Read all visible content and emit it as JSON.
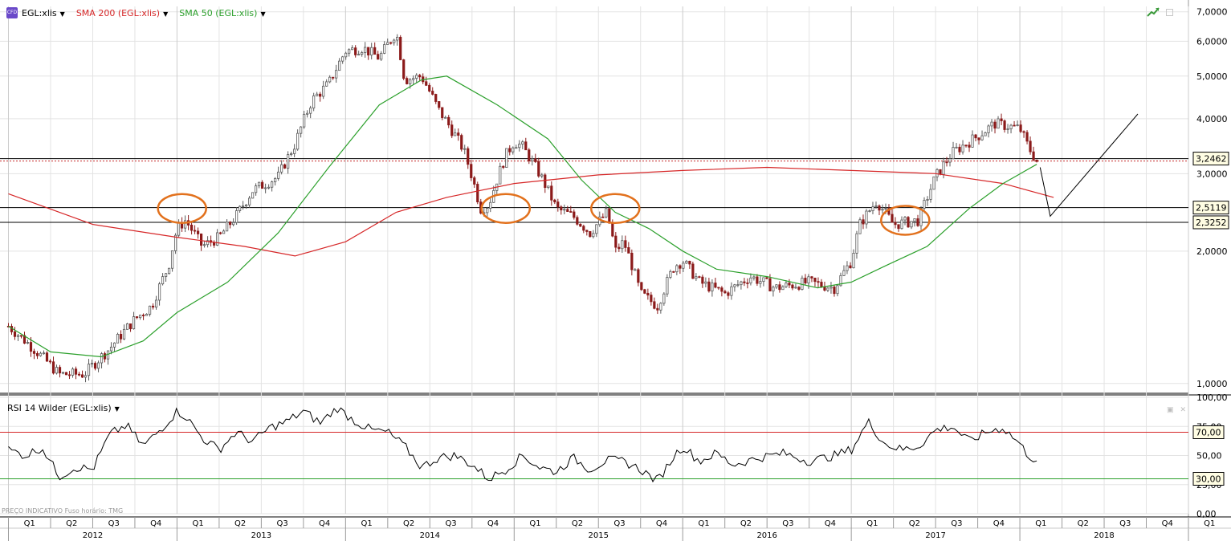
{
  "legend": {
    "instrument": "EGL:xlis",
    "sma200": "SMA 200 (EGL:xlis)",
    "sma50": "SMA 50 (EGL:xlis)",
    "badge": "CFD",
    "rsi": "RSI 14 Wilder (EGL:xlis)"
  },
  "footer_note": "PREÇO INDICATIVO   Fuso horário: TMG",
  "colors": {
    "price_up": "#5a5a5a",
    "price_down": "#8b1a1a",
    "sma200": "#d62728",
    "sma50": "#2ca02c",
    "circles": "#e2711d",
    "grid": "#e3e3e3",
    "rsi_line": "#000000"
  },
  "icons": [
    "trend-arrow-icon",
    "collapse-icon",
    "close-icon"
  ],
  "chart_data": [
    {
      "type": "candlestick",
      "scale": "log",
      "ylim": [
        0.95,
        7.2
      ],
      "y_ticks": [
        "7,0000",
        "6,0000",
        "5,0000",
        "4,0000",
        "3,0000",
        "2,0000",
        "1,0000"
      ],
      "y_tick_values": [
        7,
        6,
        5,
        4,
        3,
        2,
        1
      ],
      "x_quarters": [
        "Q1",
        "Q2",
        "Q3",
        "Q4",
        "Q1",
        "Q2",
        "Q3",
        "Q4",
        "Q1",
        "Q2",
        "Q3",
        "Q4",
        "Q1",
        "Q2",
        "Q3",
        "Q4",
        "Q1",
        "Q2",
        "Q3",
        "Q4",
        "Q1",
        "Q2",
        "Q3",
        "Q4",
        "Q1",
        "Q2",
        "Q3",
        "Q4",
        "Q1"
      ],
      "x_years": [
        "2012",
        "2013",
        "2014",
        "2015",
        "2016",
        "2017",
        "2018"
      ],
      "price_path": [
        [
          2012.0,
          1.35
        ],
        [
          2012.15,
          1.2
        ],
        [
          2012.3,
          1.05
        ],
        [
          2012.45,
          1.05
        ],
        [
          2012.6,
          1.2
        ],
        [
          2012.75,
          1.4
        ],
        [
          2012.85,
          1.5
        ],
        [
          2012.95,
          1.85
        ],
        [
          2013.0,
          2.25
        ],
        [
          2013.05,
          2.35
        ],
        [
          2013.15,
          2.05
        ],
        [
          2013.25,
          2.15
        ],
        [
          2013.35,
          2.4
        ],
        [
          2013.45,
          2.75
        ],
        [
          2013.6,
          2.95
        ],
        [
          2013.7,
          3.5
        ],
        [
          2013.8,
          4.4
        ],
        [
          2013.9,
          4.8
        ],
        [
          2014.0,
          5.7
        ],
        [
          2014.1,
          5.8
        ],
        [
          2014.2,
          5.5
        ],
        [
          2014.3,
          6.3
        ],
        [
          2014.35,
          4.9
        ],
        [
          2014.45,
          5.0
        ],
        [
          2014.55,
          4.2
        ],
        [
          2014.7,
          3.4
        ],
        [
          2014.8,
          2.5
        ],
        [
          2014.85,
          2.55
        ],
        [
          2014.95,
          3.3
        ],
        [
          2015.0,
          3.55
        ],
        [
          2015.05,
          3.45
        ],
        [
          2015.15,
          3.0
        ],
        [
          2015.25,
          2.5
        ],
        [
          2015.35,
          2.4
        ],
        [
          2015.45,
          2.2
        ],
        [
          2015.55,
          2.45
        ],
        [
          2015.6,
          2.0
        ],
        [
          2015.65,
          2.1
        ],
        [
          2015.75,
          1.6
        ],
        [
          2015.85,
          1.5
        ],
        [
          2015.95,
          1.85
        ],
        [
          2016.0,
          1.9
        ],
        [
          2016.1,
          1.7
        ],
        [
          2016.25,
          1.6
        ],
        [
          2016.4,
          1.75
        ],
        [
          2016.55,
          1.65
        ],
        [
          2016.75,
          1.7
        ],
        [
          2016.9,
          1.65
        ],
        [
          2017.0,
          1.9
        ],
        [
          2017.05,
          2.3
        ],
        [
          2017.15,
          2.6
        ],
        [
          2017.25,
          2.3
        ],
        [
          2017.4,
          2.35
        ],
        [
          2017.5,
          2.95
        ],
        [
          2017.6,
          3.35
        ],
        [
          2017.75,
          3.65
        ],
        [
          2017.85,
          3.9
        ],
        [
          2018.0,
          3.8
        ],
        [
          2018.05,
          3.45
        ],
        [
          2018.1,
          3.2
        ]
      ],
      "sma200_path": [
        [
          2012.0,
          2.7
        ],
        [
          2012.5,
          2.3
        ],
        [
          2013.0,
          2.15
        ],
        [
          2013.4,
          2.05
        ],
        [
          2013.7,
          1.95
        ],
        [
          2014.0,
          2.1
        ],
        [
          2014.3,
          2.45
        ],
        [
          2014.6,
          2.65
        ],
        [
          2015.0,
          2.85
        ],
        [
          2015.5,
          2.98
        ],
        [
          2016.0,
          3.05
        ],
        [
          2016.5,
          3.1
        ],
        [
          2017.0,
          3.05
        ],
        [
          2017.5,
          3.0
        ],
        [
          2017.9,
          2.85
        ],
        [
          2018.2,
          2.65
        ]
      ],
      "sma50_path": [
        [
          2012.0,
          1.35
        ],
        [
          2012.25,
          1.18
        ],
        [
          2012.55,
          1.15
        ],
        [
          2012.8,
          1.25
        ],
        [
          2013.0,
          1.45
        ],
        [
          2013.3,
          1.7
        ],
        [
          2013.6,
          2.2
        ],
        [
          2013.9,
          3.1
        ],
        [
          2014.2,
          4.3
        ],
        [
          2014.45,
          4.9
        ],
        [
          2014.6,
          5.0
        ],
        [
          2014.9,
          4.3
        ],
        [
          2015.2,
          3.6
        ],
        [
          2015.4,
          2.9
        ],
        [
          2015.6,
          2.45
        ],
        [
          2015.8,
          2.25
        ],
        [
          2016.0,
          2.0
        ],
        [
          2016.2,
          1.82
        ],
        [
          2016.5,
          1.75
        ],
        [
          2016.8,
          1.65
        ],
        [
          2017.0,
          1.7
        ],
        [
          2017.2,
          1.85
        ],
        [
          2017.45,
          2.05
        ],
        [
          2017.7,
          2.5
        ],
        [
          2017.9,
          2.85
        ],
        [
          2018.1,
          3.15
        ]
      ],
      "horizontal_lines": [
        3.2462,
        2.5119,
        2.3252
      ],
      "price_labels": [
        "3,2462",
        "2,5119",
        "2,3252"
      ],
      "annotation_circles": [
        [
          2013.03,
          2.5
        ],
        [
          2014.95,
          2.5
        ],
        [
          2015.6,
          2.5
        ],
        [
          2017.32,
          2.35
        ]
      ],
      "projection_path": [
        [
          2018.12,
          3.1
        ],
        [
          2018.18,
          2.4
        ],
        [
          2018.7,
          4.1
        ]
      ]
    },
    {
      "type": "line",
      "name": "RSI 14 Wilder (EGL:xlis)",
      "ylim": [
        0,
        100
      ],
      "y_ticks": [
        "100,00",
        "75,00",
        "50,00",
        "25,00",
        "0,00"
      ],
      "y_tick_values": [
        100,
        75,
        50,
        25,
        0
      ],
      "levels": [
        70,
        30
      ],
      "level_labels": [
        "70,00",
        "30,00"
      ],
      "values_path": [
        [
          2012.0,
          55
        ],
        [
          2012.1,
          50
        ],
        [
          2012.2,
          57
        ],
        [
          2012.3,
          32
        ],
        [
          2012.4,
          40
        ],
        [
          2012.5,
          38
        ],
        [
          2012.6,
          68
        ],
        [
          2012.7,
          76
        ],
        [
          2012.8,
          58
        ],
        [
          2012.9,
          72
        ],
        [
          2013.0,
          88
        ],
        [
          2013.05,
          84
        ],
        [
          2013.15,
          65
        ],
        [
          2013.25,
          55
        ],
        [
          2013.35,
          70
        ],
        [
          2013.45,
          62
        ],
        [
          2013.55,
          74
        ],
        [
          2013.65,
          79
        ],
        [
          2013.75,
          88
        ],
        [
          2013.85,
          78
        ],
        [
          2013.95,
          91
        ],
        [
          2014.05,
          80
        ],
        [
          2014.15,
          72
        ],
        [
          2014.25,
          70
        ],
        [
          2014.35,
          58
        ],
        [
          2014.45,
          40
        ],
        [
          2014.55,
          48
        ],
        [
          2014.65,
          50
        ],
        [
          2014.75,
          42
        ],
        [
          2014.85,
          30
        ],
        [
          2014.95,
          38
        ],
        [
          2015.05,
          50
        ],
        [
          2015.15,
          40
        ],
        [
          2015.25,
          36
        ],
        [
          2015.35,
          48
        ],
        [
          2015.45,
          38
        ],
        [
          2015.55,
          46
        ],
        [
          2015.65,
          45
        ],
        [
          2015.75,
          38
        ],
        [
          2015.85,
          28
        ],
        [
          2015.95,
          50
        ],
        [
          2016.0,
          58
        ],
        [
          2016.1,
          45
        ],
        [
          2016.2,
          52
        ],
        [
          2016.3,
          42
        ],
        [
          2016.45,
          48
        ],
        [
          2016.6,
          52
        ],
        [
          2016.75,
          45
        ],
        [
          2016.9,
          50
        ],
        [
          2017.0,
          55
        ],
        [
          2017.1,
          79
        ],
        [
          2017.2,
          60
        ],
        [
          2017.3,
          55
        ],
        [
          2017.4,
          58
        ],
        [
          2017.5,
          72
        ],
        [
          2017.6,
          75
        ],
        [
          2017.7,
          62
        ],
        [
          2017.8,
          70
        ],
        [
          2017.9,
          74
        ],
        [
          2018.0,
          60
        ],
        [
          2018.05,
          50
        ],
        [
          2018.1,
          46
        ]
      ]
    }
  ]
}
